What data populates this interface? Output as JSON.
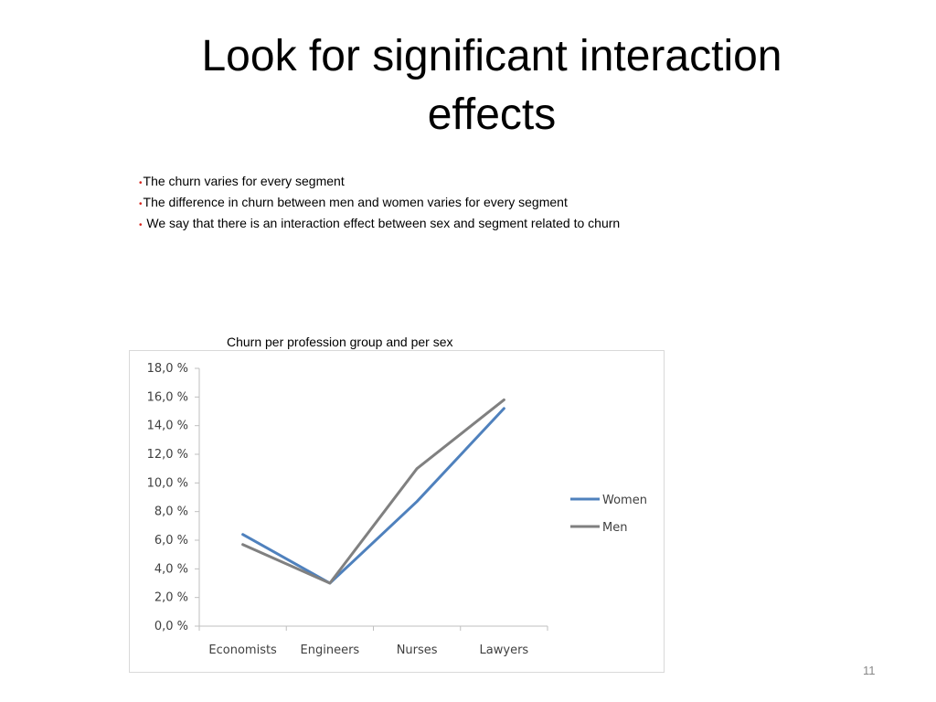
{
  "slide": {
    "title": "Look for significant interaction effects",
    "bullets": [
      "The churn varies for every segment",
      "The difference in churn between men and women varies for every segment",
      " We say that there is an interaction effect between sex and segment related to churn"
    ],
    "bullet_color": "#d7261e",
    "page_number": "11"
  },
  "chart_data": {
    "type": "line",
    "title": "Churn per profession group and per sex",
    "categories": [
      "Economists",
      "Engineers",
      "Nurses",
      "Lawyers"
    ],
    "series": [
      {
        "name": "Women",
        "values": [
          6.4,
          3.0,
          8.7,
          15.2
        ],
        "color": "#4f81bd"
      },
      {
        "name": "Men",
        "values": [
          5.7,
          3.0,
          11.0,
          15.8
        ],
        "color": "#808080"
      }
    ],
    "ylim": [
      0,
      18
    ],
    "y_ticks": [
      {
        "value": 0,
        "label": "0,0 %"
      },
      {
        "value": 2,
        "label": "2,0 %"
      },
      {
        "value": 4,
        "label": "4,0 %"
      },
      {
        "value": 6,
        "label": "6,0 %"
      },
      {
        "value": 8,
        "label": "8,0 %"
      },
      {
        "value": 10,
        "label": "10,0 %"
      },
      {
        "value": 12,
        "label": "12,0 %"
      },
      {
        "value": 14,
        "label": "14,0 %"
      },
      {
        "value": 16,
        "label": "16,0 %"
      },
      {
        "value": 18,
        "label": "18,0 %"
      }
    ],
    "grid": false,
    "legend_position": "right"
  }
}
